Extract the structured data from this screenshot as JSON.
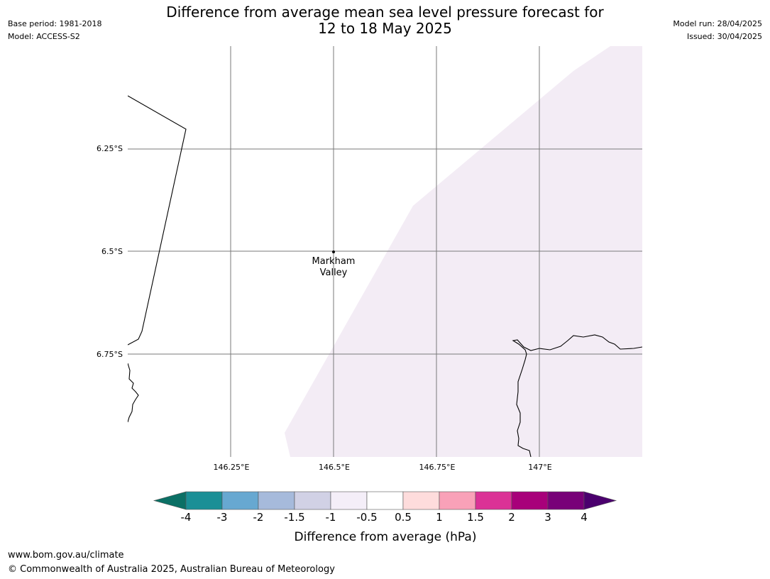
{
  "header": {
    "title_line1": "Difference from average mean sea level pressure forecast for",
    "title_line2": "12 to 18 May 2025",
    "base_period": "Base period: 1981-2018",
    "model": "Model: ACCESS-S2",
    "model_run": "Model run: 28/04/2025",
    "issued": "Issued: 30/04/2025"
  },
  "map": {
    "lat_labels": [
      "6.25°S",
      "6.5°S",
      "6.75°S"
    ],
    "lon_labels": [
      "146.25°E",
      "146.5°E",
      "146.75°E",
      "147°E"
    ],
    "place": {
      "name_line1": "Markham",
      "name_line2": "Valley"
    },
    "anomaly_fill_color": "#f3ecf5"
  },
  "colorbar": {
    "label": "Difference from average (hPa)",
    "ticks": [
      "-4",
      "-3",
      "-2",
      "-1.5",
      "-1",
      "-0.5",
      "0.5",
      "1",
      "1.5",
      "2",
      "3",
      "4"
    ],
    "low_extend_color": "#0b7065",
    "high_extend_color": "#4b006e",
    "colors": [
      "#1a8f96",
      "#67a8d1",
      "#a6badb",
      "#d1d1e5",
      "#f4eef8",
      "#ffffff",
      "#fedcdc",
      "#f9a1b8",
      "#db3296",
      "#a8007a",
      "#780078"
    ]
  },
  "footer": {
    "url": "www.bom.gov.au/climate",
    "copyright": "© Commonwealth of Australia 2025, Australian Bureau of Meteorology"
  }
}
